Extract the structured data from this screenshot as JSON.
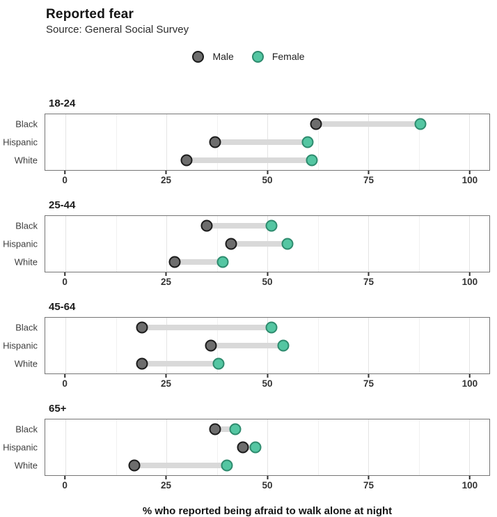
{
  "title": "Reported fear",
  "subtitle": "Source: General Social Survey",
  "chart_data": {
    "type": "dumbbell",
    "title": "Reported fear",
    "subtitle": "Source: General Social Survey",
    "xlabel": "% who reported being afraid to walk alone at night",
    "xlim": [
      0,
      100
    ],
    "x_expand_pad": 5,
    "x_ticks": [
      0,
      25,
      50,
      75,
      100
    ],
    "x_minor_ticks": [
      12.5,
      37.5,
      62.5,
      87.5
    ],
    "grid": "on",
    "legend_position": "top-center",
    "row_pct": [
      18,
      50,
      82
    ],
    "series": [
      {
        "name": "Male",
        "fill": "#6d6d6d",
        "stroke": "#1b1b1b"
      },
      {
        "name": "Female",
        "fill": "#54c6a2",
        "stroke": "#2e8b6e"
      }
    ],
    "facets": [
      {
        "label": "18-24",
        "rows": [
          {
            "category": "Black",
            "male": 62,
            "female": 88
          },
          {
            "category": "Hispanic",
            "male": 37,
            "female": 60
          },
          {
            "category": "White",
            "male": 30,
            "female": 61
          }
        ]
      },
      {
        "label": "25-44",
        "rows": [
          {
            "category": "Black",
            "male": 35,
            "female": 51
          },
          {
            "category": "Hispanic",
            "male": 41,
            "female": 55
          },
          {
            "category": "White",
            "male": 27,
            "female": 39
          }
        ]
      },
      {
        "label": "45-64",
        "rows": [
          {
            "category": "Black",
            "male": 19,
            "female": 51
          },
          {
            "category": "Hispanic",
            "male": 36,
            "female": 54
          },
          {
            "category": "White",
            "male": 19,
            "female": 38
          }
        ]
      },
      {
        "label": "65+",
        "rows": [
          {
            "category": "Black",
            "male": 37,
            "female": 42
          },
          {
            "category": "Hispanic",
            "male": 44,
            "female": 47
          },
          {
            "category": "White",
            "male": 17,
            "female": 40
          }
        ]
      }
    ],
    "palette": {
      "male_fill": "#6d6d6d",
      "male_stroke": "#1b1b1b",
      "female_fill": "#54c6a2",
      "female_stroke": "#2e8b6e",
      "bar": "#d9d9d9",
      "grid_major": "#e4e4e4",
      "grid_minor": "#f1f1f1",
      "panel_border": "#757575",
      "text": "#1f1f1f"
    }
  }
}
